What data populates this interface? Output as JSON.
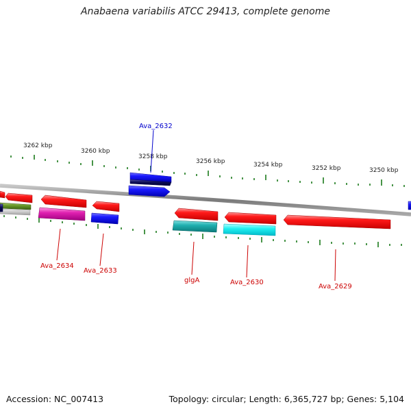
{
  "title": "Anabaena variabilis ATCC 29413, complete genome",
  "accession": "Accession: NC_007413",
  "summary": "Topology: circular; Length: 6,365,727 bp; Genes: 5,104",
  "colors": {
    "backbone": "#8a8a8a",
    "tick": "#1a7a1a",
    "forward_gene": "#ff2020",
    "reverse_label": "#0000cc",
    "forward_label": "#cc0000"
  },
  "scale_labels": [
    "3262 kbp",
    "3260 kbp",
    "3258 kbp",
    "3256 kbp",
    "3254 kbp",
    "3252 kbp",
    "3250 kbp"
  ],
  "gene_labels": [
    {
      "name": "Ava_2632",
      "color": "#0000cc"
    },
    {
      "name": "Ava_2634",
      "color": "#cc0000"
    },
    {
      "name": "Ava_2633",
      "color": "#cc0000"
    },
    {
      "name": "glgA",
      "color": "#cc0000"
    },
    {
      "name": "Ava_2630",
      "color": "#cc0000"
    },
    {
      "name": "Ava_2629",
      "color": "#cc0000"
    }
  ]
}
